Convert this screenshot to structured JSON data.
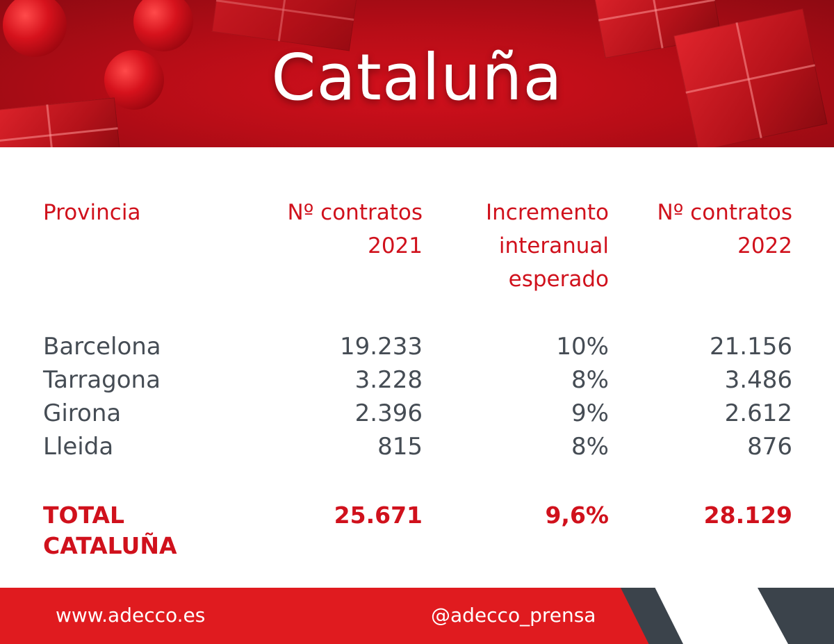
{
  "banner": {
    "title": "Cataluña"
  },
  "table": {
    "headers": {
      "provincia": "Provincia",
      "contratos_2021": [
        "Nº contratos",
        "2021"
      ],
      "incremento": [
        "Incremento",
        "interanual",
        "esperado"
      ],
      "contratos_2022": [
        "Nº contratos",
        "2022"
      ]
    },
    "rows": [
      {
        "provincia": "Barcelona",
        "contratos_2021": "19.233",
        "incremento": "10%",
        "contratos_2022": "21.156"
      },
      {
        "provincia": "Tarragona",
        "contratos_2021": "3.228",
        "incremento": "8%",
        "contratos_2022": "3.486"
      },
      {
        "provincia": "Girona",
        "contratos_2021": "2.396",
        "incremento": "9%",
        "contratos_2022": "2.612"
      },
      {
        "provincia": "Lleida",
        "contratos_2021": "815",
        "incremento": "8%",
        "contratos_2022": "876"
      }
    ],
    "total": {
      "label": [
        "TOTAL",
        "CATALUÑA"
      ],
      "contratos_2021": "25.671",
      "incremento": "9,6%",
      "contratos_2022": "28.129"
    }
  },
  "footer": {
    "website": "www.adecco.es",
    "twitter": "@adecco_prensa"
  },
  "colors": {
    "accent": "#d0111c",
    "text": "#454c54",
    "footer": "#e01b1f",
    "stripe": "#3b434b"
  }
}
